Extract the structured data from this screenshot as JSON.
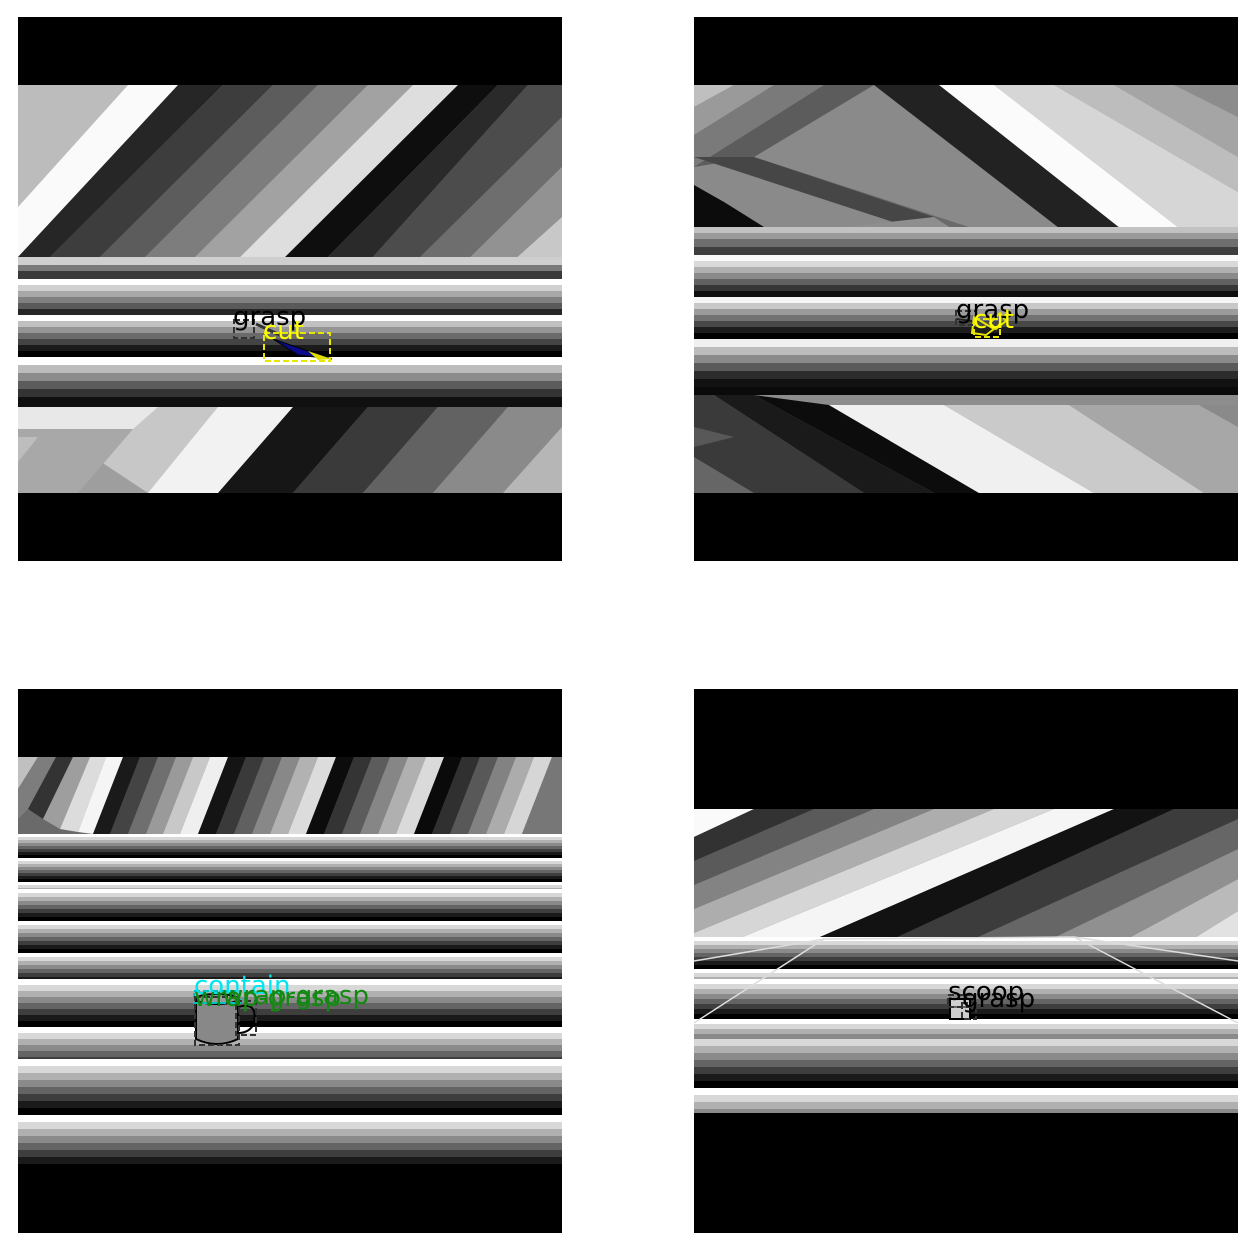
{
  "colors": {
    "grasp": "#000000",
    "cut": "#ffff00",
    "contain": "#00e5ee",
    "wrap_grasp": "#128a12",
    "scoop": "#000000"
  },
  "panels": [
    {
      "objects": [
        "knife"
      ],
      "labels": [
        {
          "text": "grasp",
          "color_key": "grasp"
        },
        {
          "text": "cut",
          "color_key": "cut"
        }
      ]
    },
    {
      "objects": [
        "scissors"
      ],
      "labels": [
        {
          "text": "grasp",
          "color_key": "grasp"
        },
        {
          "text": "cut",
          "color_key": "cut"
        }
      ]
    },
    {
      "objects": [
        "mug"
      ],
      "labels": [
        {
          "text": "contain",
          "color_key": "contain"
        },
        {
          "text": "wrap-grasp",
          "color_key": "wrap_grasp"
        },
        {
          "text": "wrap-grasp",
          "color_key": "wrap_grasp"
        }
      ]
    },
    {
      "objects": [
        "cup"
      ],
      "labels": [
        {
          "text": "scoop",
          "color_key": "scoop"
        },
        {
          "text": "grasp",
          "color_key": "grasp"
        }
      ]
    }
  ]
}
